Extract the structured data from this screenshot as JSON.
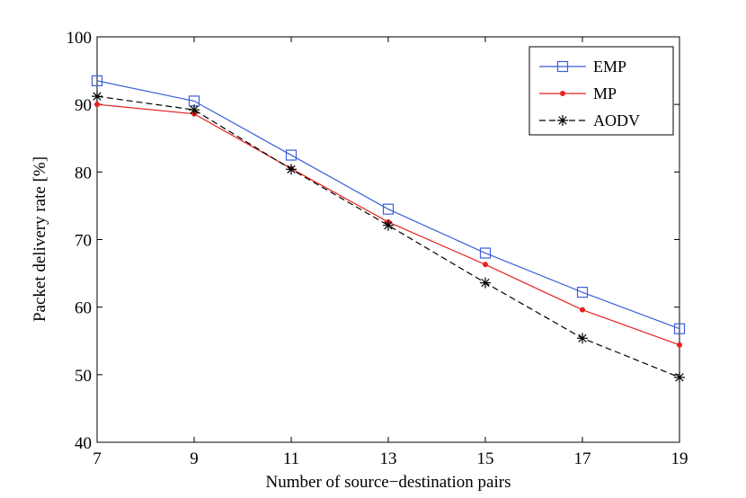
{
  "chart_data": {
    "type": "line",
    "title": "",
    "xlabel": "Number of source−destination pairs",
    "ylabel": "Packet delivery rate [%]",
    "x": [
      7,
      9,
      11,
      13,
      15,
      17,
      19
    ],
    "xlim": [
      7,
      19
    ],
    "ylim": [
      40,
      100
    ],
    "xticks": [
      7,
      9,
      11,
      13,
      15,
      17,
      19
    ],
    "yticks": [
      40,
      50,
      60,
      70,
      80,
      90,
      100
    ],
    "grid": false,
    "legend_position": "top-right",
    "series": [
      {
        "name": "EMP",
        "color": "#3a5fd9",
        "line_style": "solid",
        "marker": "square",
        "values": [
          93.5,
          90.5,
          82.5,
          74.5,
          68.0,
          62.2,
          56.8
        ]
      },
      {
        "name": "MP",
        "color": "#e8211f",
        "line_style": "solid",
        "marker": "dot",
        "values": [
          90.0,
          88.6,
          80.5,
          72.6,
          66.3,
          59.6,
          54.4
        ]
      },
      {
        "name": "AODV",
        "color": "#000000",
        "line_style": "dashed",
        "marker": "asterisk",
        "values": [
          91.2,
          89.2,
          80.4,
          72.1,
          63.6,
          55.4,
          49.6
        ]
      }
    ]
  }
}
